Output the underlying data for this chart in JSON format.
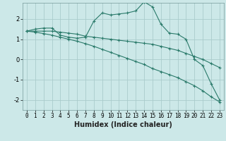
{
  "xlabel": "Humidex (Indice chaleur)",
  "bg_color": "#cce8e8",
  "grid_color": "#aacccc",
  "line_color": "#2a7a6a",
  "xlim": [
    -0.5,
    23.5
  ],
  "ylim": [
    -2.5,
    2.8
  ],
  "xticks": [
    0,
    1,
    2,
    3,
    4,
    5,
    6,
    7,
    8,
    9,
    10,
    11,
    12,
    13,
    14,
    15,
    16,
    17,
    18,
    19,
    20,
    21,
    22,
    23
  ],
  "yticks": [
    -2,
    -1,
    0,
    1,
    2
  ],
  "line1_x": [
    0,
    1,
    2,
    3,
    4,
    5,
    6,
    7,
    8,
    9,
    10,
    11,
    12,
    13,
    14,
    15,
    16,
    17,
    18,
    19,
    20,
    21,
    22,
    23
  ],
  "line1_y": [
    1.4,
    1.5,
    1.55,
    1.55,
    1.2,
    1.1,
    1.05,
    1.1,
    1.9,
    2.3,
    2.2,
    2.25,
    2.3,
    2.4,
    2.85,
    2.6,
    1.75,
    1.3,
    1.25,
    1.0,
    0.0,
    -0.3,
    -1.2,
    -2.0
  ],
  "line2_x": [
    0,
    1,
    2,
    3,
    4,
    5,
    6,
    7,
    8,
    9,
    10,
    11,
    12,
    13,
    14,
    15,
    16,
    17,
    18,
    19,
    20,
    21,
    22,
    23
  ],
  "line2_y": [
    1.4,
    1.4,
    1.4,
    1.4,
    1.35,
    1.3,
    1.25,
    1.15,
    1.1,
    1.05,
    1.0,
    0.95,
    0.9,
    0.85,
    0.8,
    0.75,
    0.65,
    0.55,
    0.45,
    0.3,
    0.15,
    0.0,
    -0.2,
    -0.4
  ],
  "line3_x": [
    0,
    1,
    2,
    3,
    4,
    5,
    6,
    7,
    8,
    9,
    10,
    11,
    12,
    13,
    14,
    15,
    16,
    17,
    18,
    19,
    20,
    21,
    22,
    23
  ],
  "line3_y": [
    1.4,
    1.35,
    1.28,
    1.2,
    1.1,
    1.0,
    0.9,
    0.78,
    0.65,
    0.5,
    0.35,
    0.2,
    0.05,
    -0.1,
    -0.25,
    -0.45,
    -0.6,
    -0.75,
    -0.9,
    -1.1,
    -1.3,
    -1.55,
    -1.85,
    -2.1
  ]
}
